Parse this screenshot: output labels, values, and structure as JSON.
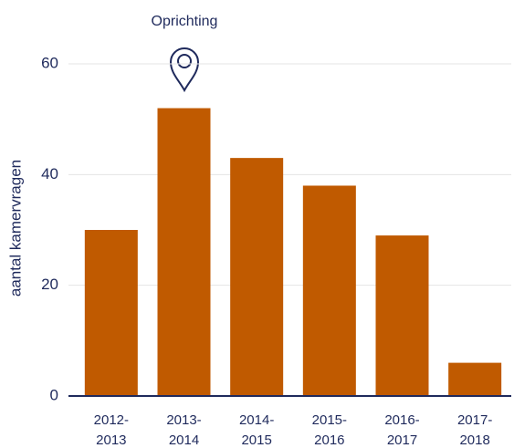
{
  "chart_data": {
    "type": "bar",
    "annotation": "Oprichting",
    "ylabel": "aantal kamervragen",
    "categories": [
      [
        "2012-",
        "2013"
      ],
      [
        "2013-",
        "2014"
      ],
      [
        "2014-",
        "2015"
      ],
      [
        "2015-",
        "2016"
      ],
      [
        "2016-",
        "2017"
      ],
      [
        "2017-",
        "2018"
      ]
    ],
    "values": [
      30,
      52,
      43,
      38,
      29,
      6
    ],
    "color": "#c05a00",
    "ylim": [
      0,
      60
    ],
    "yticks": [
      0,
      20,
      40,
      60
    ],
    "grid": true
  }
}
